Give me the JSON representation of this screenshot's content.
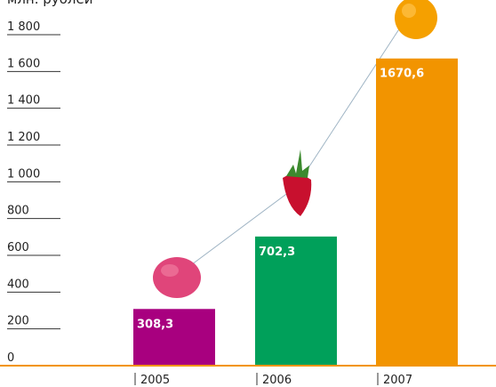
{
  "chart_data": {
    "type": "bar",
    "y_axis_label": "млн. рублей",
    "categories": [
      "2005",
      "2006",
      "2007"
    ],
    "values": [
      308.3,
      702.3,
      1670.6
    ],
    "value_labels": [
      "308,3",
      "702,3",
      "1670,6"
    ],
    "colors": [
      "#a8007f",
      "#00a05a",
      "#f29400"
    ],
    "ylim": [
      0,
      1800
    ],
    "yticks": [
      0,
      200,
      400,
      600,
      800,
      {
        "value": 1000,
        "label": "1 000"
      },
      {
        "value": 1200,
        "label": "1 200"
      },
      {
        "value": 1400,
        "label": "1 400"
      },
      {
        "value": 1600,
        "label": "1 600"
      },
      {
        "value": 1800,
        "label": "1 800"
      }
    ]
  }
}
